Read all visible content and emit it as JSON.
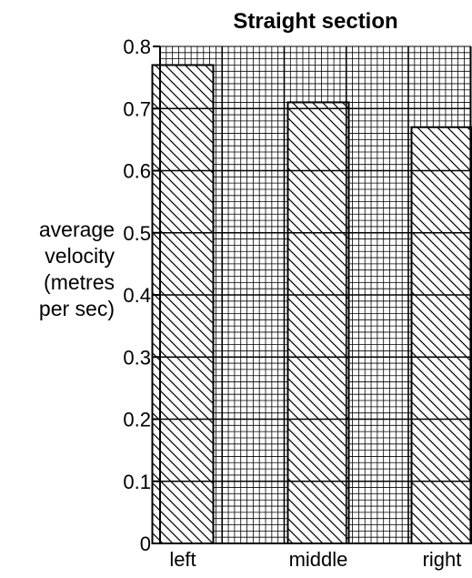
{
  "chart_data": {
    "type": "bar",
    "title": "Straight section",
    "xlabel": "",
    "ylabel": [
      "average",
      "velocity",
      "(metres",
      "per sec)"
    ],
    "categories": [
      "left",
      "middle",
      "right"
    ],
    "values": [
      0.77,
      0.71,
      0.67
    ],
    "ylim": [
      0,
      0.8
    ],
    "yticks": [
      "0",
      "0.1",
      "0.2",
      "0.3",
      "0.4",
      "0.5",
      "0.6",
      "0.7",
      "0.8"
    ],
    "grid": true,
    "bar_fill": "diagonal-hatch",
    "colors": {
      "ink": "#000000",
      "background": "#ffffff"
    }
  }
}
